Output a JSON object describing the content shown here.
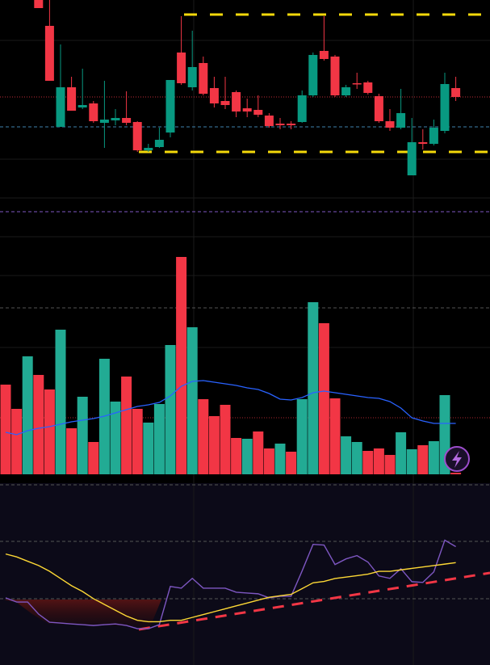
{
  "chart_data": [
    {
      "type": "candlestick",
      "up_color": "#089981",
      "down_color": "#f23645",
      "ylim": [
        0,
        250
      ],
      "open": [
        null,
        null,
        null,
        250,
        218,
        93,
        142,
        117,
        122,
        98,
        101,
        104,
        99,
        64,
        68,
        86,
        185,
        142,
        172,
        141,
        125,
        136,
        116,
        114,
        107,
        97,
        97,
        99,
        132,
        187,
        180,
        132,
        147,
        148,
        131,
        100,
        92,
        33,
        74,
        72,
        88,
        141
      ],
      "high": [
        null,
        null,
        null,
        250,
        250,
        195,
        155,
        165,
        125,
        150,
        115,
        137,
        100,
        72,
        92,
        151,
        230,
        212,
        180,
        155,
        155,
        138,
        128,
        132,
        110,
        104,
        100,
        138,
        185,
        230,
        182,
        145,
        160,
        150,
        134,
        115,
        140,
        104,
        90,
        102,
        160,
        155
      ],
      "low": [
        null,
        null,
        null,
        240,
        150,
        93,
        113,
        115,
        98,
        67,
        95,
        95,
        62,
        62,
        67,
        80,
        145,
        138,
        132,
        117,
        115,
        105,
        105,
        105,
        92,
        90,
        90,
        98,
        130,
        175,
        130,
        130,
        140,
        133,
        98,
        88,
        90,
        33,
        65,
        70,
        85,
        125
      ],
      "close": [
        null,
        null,
        null,
        240,
        150,
        142,
        113,
        120,
        100,
        102,
        104,
        98,
        64,
        67,
        77,
        151,
        147,
        167,
        134,
        122,
        120,
        112,
        112,
        108,
        94,
        95,
        95,
        132,
        182,
        177,
        132,
        142,
        146,
        135,
        100,
        92,
        110,
        74,
        72,
        92,
        146,
        130
      ]
    },
    {
      "type": "bar",
      "ylim": [
        0,
        280
      ],
      "values": [
        111,
        81,
        146,
        123,
        105,
        179,
        57,
        96,
        40,
        143,
        90,
        121,
        81,
        64,
        87,
        160,
        269,
        182,
        93,
        72,
        86,
        45,
        44,
        53,
        32,
        38,
        28,
        93,
        213,
        187,
        94,
        47,
        40,
        29,
        32,
        24,
        52,
        31,
        36,
        41,
        98,
        2
      ],
      "colors": [
        "#f23645",
        "#f23645",
        "#22ab94",
        "#f23645",
        "#f23645",
        "#22ab94",
        "#f23645",
        "#22ab94",
        "#f23645",
        "#22ab94",
        "#22ab94",
        "#f23645",
        "#f23645",
        "#22ab94",
        "#22ab94",
        "#22ab94",
        "#f23645",
        "#22ab94",
        "#f23645",
        "#f23645",
        "#f23645",
        "#f23645",
        "#22ab94",
        "#f23645",
        "#f23645",
        "#22ab94",
        "#f23645",
        "#22ab94",
        "#22ab94",
        "#f23645",
        "#f23645",
        "#22ab94",
        "#22ab94",
        "#f23645",
        "#f23645",
        "#f23645",
        "#22ab94",
        "#22ab94",
        "#f23645",
        "#22ab94",
        "#22ab94",
        "#f23645"
      ],
      "series": [
        {
          "color": "#2962ff",
          "values": [
            52,
            49,
            54,
            57,
            59,
            62,
            65,
            67,
            69,
            72,
            76,
            80,
            84,
            86,
            89,
            97,
            109,
            115,
            116,
            114,
            112,
            110,
            107,
            105,
            100,
            93,
            92,
            95,
            101,
            103,
            101,
            99,
            97,
            95,
            94,
            90,
            82,
            70,
            66,
            63,
            63,
            63
          ]
        }
      ]
    },
    {
      "type": "line",
      "ylim": [
        -16,
        109
      ],
      "series": [
        {
          "color": "#7e57c2",
          "values": [
            30.6,
            27.7,
            27.7,
            19.3,
            13.7,
            13.1,
            12.5,
            12.0,
            11.4,
            12.0,
            12.5,
            11.4,
            9.2,
            9.2,
            12.0,
            38.5,
            37.3,
            44.1,
            37.3,
            37.3,
            37.3,
            34.5,
            33.9,
            33.4,
            30.6,
            31.7,
            31.7,
            49.2,
            67.7,
            67.2,
            53.7,
            57.6,
            59.9,
            55.4,
            45.8,
            44.1,
            50.8,
            41.8,
            41.3,
            48.6,
            70.6,
            66.1
          ]
        },
        {
          "color": "#fdd835",
          "values": [
            61,
            59,
            56,
            53,
            49,
            44,
            39,
            35,
            30,
            26,
            22,
            18,
            15,
            14,
            14,
            15,
            15,
            17,
            19,
            21,
            23,
            25,
            27,
            29,
            31,
            32,
            33,
            37,
            41,
            42,
            44,
            45,
            46,
            47,
            49,
            49,
            50,
            51,
            52,
            53,
            54,
            55
          ]
        }
      ]
    }
  ]
}
